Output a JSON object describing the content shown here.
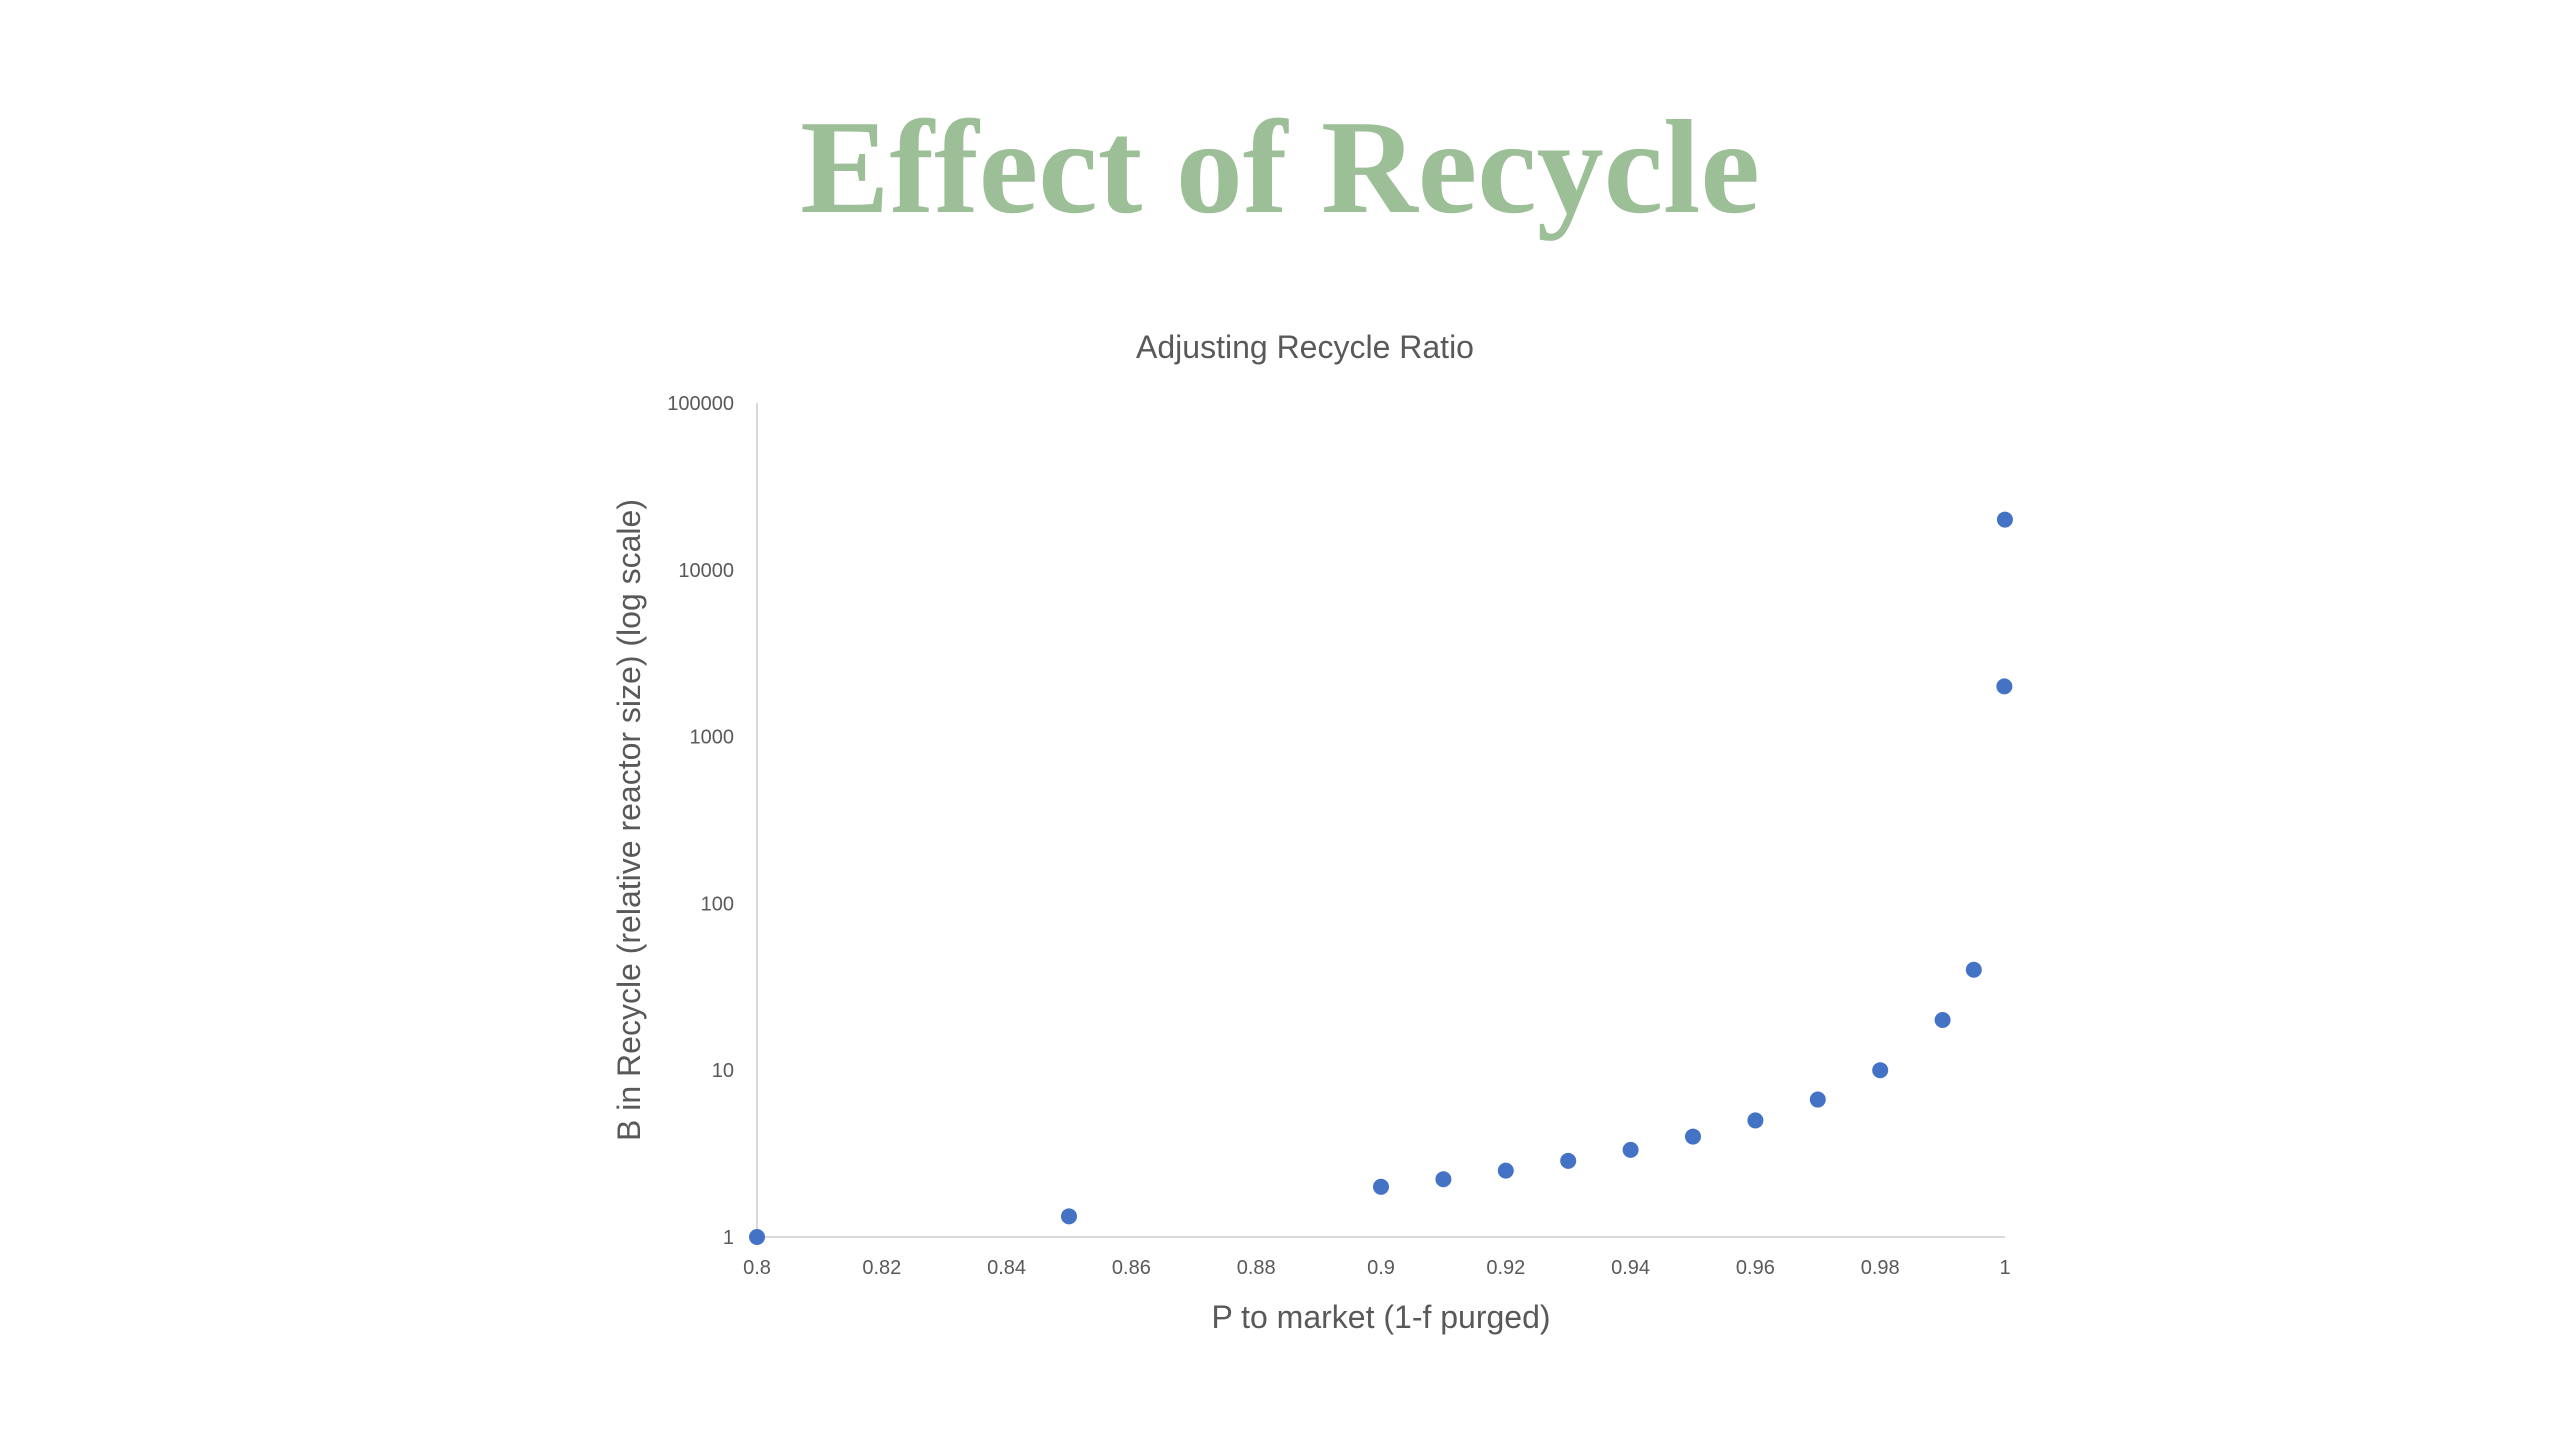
{
  "slide": {
    "title": "Effect of Recycle"
  },
  "chart_data": {
    "type": "scatter",
    "title": "Adjusting Recycle Ratio",
    "xlabel": "P to market (1-f purged)",
    "ylabel": "B in Recycle (relative reactor size) (log scale)",
    "xlim": [
      0.8,
      1
    ],
    "ylim": [
      1,
      100000
    ],
    "yscale": "log",
    "grid": false,
    "legend": "none",
    "x_ticks": [
      "0.8",
      "0.82",
      "0.84",
      "0.86",
      "0.88",
      "0.9",
      "0.92",
      "0.94",
      "0.96",
      "0.98",
      "1"
    ],
    "y_ticks": [
      "1",
      "10",
      "100",
      "1000",
      "10000",
      "100000"
    ],
    "marker_color": "#4472c4",
    "series": [
      {
        "points": [
          {
            "x": 0.8,
            "y": 1
          },
          {
            "x": 0.85,
            "y": 1.33
          },
          {
            "x": 0.9,
            "y": 2
          },
          {
            "x": 0.91,
            "y": 2.22
          },
          {
            "x": 0.92,
            "y": 2.5
          },
          {
            "x": 0.93,
            "y": 2.86
          },
          {
            "x": 0.94,
            "y": 3.33
          },
          {
            "x": 0.95,
            "y": 4
          },
          {
            "x": 0.96,
            "y": 5
          },
          {
            "x": 0.97,
            "y": 6.67
          },
          {
            "x": 0.98,
            "y": 10
          },
          {
            "x": 0.99,
            "y": 20
          },
          {
            "x": 0.995,
            "y": 40
          },
          {
            "x": 0.9999,
            "y": 2000
          },
          {
            "x": 0.99999,
            "y": 20000
          }
        ]
      }
    ]
  }
}
